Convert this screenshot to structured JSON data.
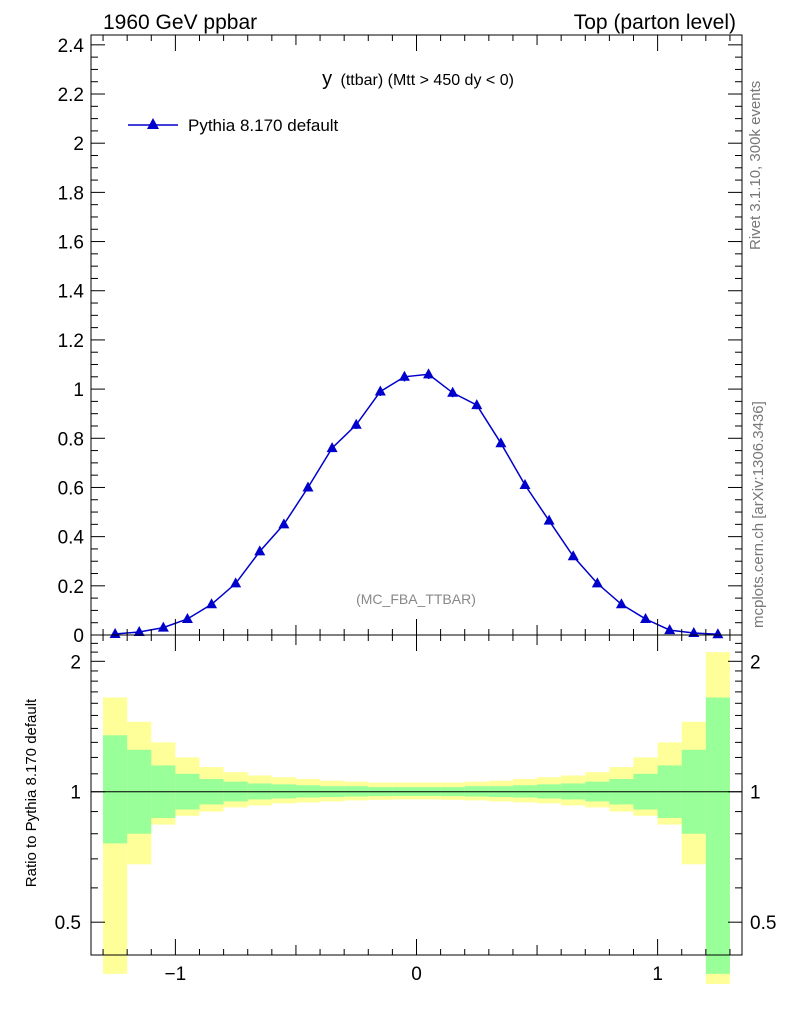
{
  "header": {
    "left": "1960 GeV ppbar",
    "right": "Top (parton level)"
  },
  "plot_title": {
    "main": "y",
    "rest": "(ttbar) (Mtt > 450 dy < 0)"
  },
  "side_labels": {
    "rivet": "Rivet 3.1.10,  300k events",
    "mcplots": "mcplots.cern.ch [arXiv:1306.3436]"
  },
  "watermark": "(MC_FBA_TTBAR)",
  "colors": {
    "series": "#0000cc",
    "band_inner": "#99ff99",
    "band_outer": "#ffff99"
  },
  "chart_data": [
    {
      "type": "line",
      "panel": "main",
      "xlim": [
        -1.35,
        1.35
      ],
      "ylim": [
        0,
        2.44
      ],
      "yticks": [
        "0",
        "0.2",
        "0.4",
        "0.6",
        "0.8",
        "1",
        "1.2",
        "1.4",
        "1.6",
        "1.8",
        "2",
        "2.2",
        "2.4"
      ],
      "legend_position": "top-left",
      "series": [
        {
          "name": "Pythia 8.170 default",
          "marker": "triangle",
          "x": [
            -1.25,
            -1.15,
            -1.05,
            -0.95,
            -0.85,
            -0.75,
            -0.65,
            -0.55,
            -0.45,
            -0.35,
            -0.25,
            -0.15,
            -0.05,
            0.05,
            0.15,
            0.25,
            0.35,
            0.45,
            0.55,
            0.65,
            0.75,
            0.85,
            0.95,
            1.05,
            1.15,
            1.25
          ],
          "y": [
            0.004,
            0.012,
            0.03,
            0.065,
            0.125,
            0.21,
            0.34,
            0.45,
            0.6,
            0.76,
            0.855,
            0.99,
            1.05,
            1.06,
            0.985,
            0.935,
            0.78,
            0.61,
            0.465,
            0.32,
            0.21,
            0.125,
            0.065,
            0.02,
            0.008,
            0.003
          ],
          "yerr": [
            0.002,
            0.004,
            0.006,
            0.008,
            0.01,
            0.012,
            0.014,
            0.015,
            0.016,
            0.016,
            0.017,
            0.018,
            0.019,
            0.019,
            0.018,
            0.017,
            0.016,
            0.016,
            0.015,
            0.013,
            0.012,
            0.01,
            0.008,
            0.006,
            0.004,
            0.002
          ]
        }
      ]
    },
    {
      "type": "area",
      "panel": "ratio",
      "ylabel": "Ratio to Pythia 8.170 default",
      "xlim": [
        -1.35,
        1.35
      ],
      "ylim": [
        0.42,
        2.3
      ],
      "log_scale": true,
      "xticks": [
        "−1",
        "0",
        "1"
      ],
      "yticks": [
        "0.5",
        "1",
        "2"
      ],
      "reference_line": 1,
      "bins_x": [
        -1.3,
        -1.2,
        -1.1,
        -1.0,
        -0.9,
        -0.8,
        -0.7,
        -0.6,
        -0.5,
        -0.4,
        -0.3,
        -0.2,
        -0.1,
        0.0,
        0.1,
        0.2,
        0.3,
        0.4,
        0.5,
        0.6,
        0.7,
        0.8,
        0.9,
        1.0,
        1.1,
        1.2,
        1.3
      ],
      "inner_band": {
        "upper": [
          1.35,
          1.25,
          1.15,
          1.1,
          1.07,
          1.055,
          1.045,
          1.04,
          1.035,
          1.03,
          1.03,
          1.025,
          1.025,
          1.025,
          1.025,
          1.03,
          1.03,
          1.035,
          1.04,
          1.045,
          1.055,
          1.07,
          1.1,
          1.15,
          1.25,
          1.65
        ],
        "lower": [
          0.76,
          0.8,
          0.87,
          0.91,
          0.935,
          0.95,
          0.96,
          0.965,
          0.97,
          0.972,
          0.975,
          0.977,
          0.978,
          0.978,
          0.977,
          0.975,
          0.972,
          0.97,
          0.965,
          0.96,
          0.95,
          0.935,
          0.91,
          0.87,
          0.8,
          0.38
        ]
      },
      "outer_band": {
        "upper": [
          1.65,
          1.45,
          1.3,
          1.2,
          1.14,
          1.11,
          1.09,
          1.08,
          1.07,
          1.06,
          1.055,
          1.05,
          1.05,
          1.05,
          1.05,
          1.055,
          1.06,
          1.07,
          1.08,
          1.09,
          1.11,
          1.14,
          1.2,
          1.3,
          1.45,
          2.1
        ],
        "lower": [
          0.38,
          0.68,
          0.84,
          0.88,
          0.9,
          0.92,
          0.93,
          0.94,
          0.945,
          0.95,
          0.955,
          0.958,
          0.96,
          0.96,
          0.958,
          0.955,
          0.95,
          0.945,
          0.94,
          0.93,
          0.92,
          0.9,
          0.88,
          0.84,
          0.68,
          0.36
        ]
      }
    }
  ]
}
